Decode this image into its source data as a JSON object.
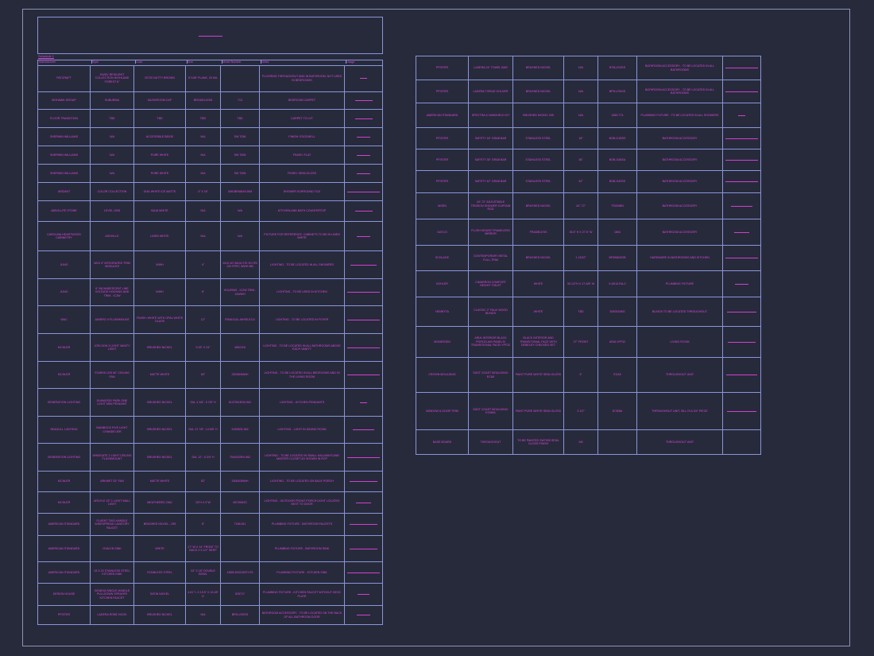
{
  "schedule_label": "Schedule 1",
  "columns": [
    "Manufacturer",
    "Style",
    "Color",
    "Size",
    "Model Number",
    "Notes",
    "Usage"
  ],
  "left_rows": [
    {
      "manufacturer": "PATCRAFT",
      "style": "DWDV RESILIENT COLLECTION HIGHLAND FOREST 6\"",
      "color": "20720 NUTTY BROWN",
      "size": "6\"X48\" PLANK, 20 MIL",
      "model": "",
      "notes": "FLOORING THROUGHOUT AND IN BATHROOM, NOT USED IN BEDROOMS",
      "usage": 0.2
    },
    {
      "manufacturer": "MOHAWK GROUP",
      "style": "SUBURBIA",
      "color": "MUSHROOM CAP",
      "size": "BROADLOOM",
      "model": "713",
      "notes": "BEDROOM CARPET",
      "usage": 0.5
    },
    {
      "manufacturer": "FLOOR TRANSITION",
      "style": "TBD",
      "color": "TBD",
      "size": "TBD",
      "model": "TBD",
      "notes": "CARPET TO LVT",
      "usage": 0.5
    },
    {
      "manufacturer": "SHERWIN WILLIAMS",
      "style": "N/A",
      "color": "ACCESSIBLE BEIGE",
      "size": "N/A",
      "model": "SW 7036",
      "notes": "FINISH: EGGSHELL",
      "usage": 0.4
    },
    {
      "manufacturer": "SHERWIN WILLIAMS",
      "style": "N/A",
      "color": "PURE WHITE",
      "size": "N/A",
      "model": "SW 7005",
      "notes": "FINISH: FLAT",
      "usage": 0.4
    },
    {
      "manufacturer": "SHERWIN WILLIAMS",
      "style": "N/A",
      "color": "PURE WHITE",
      "size": "N/A",
      "model": "SW 7005",
      "notes": "FINISH: SEMI-GLOSS",
      "usage": 0.4
    },
    {
      "manufacturer": "ARIZANT",
      "style": "COLOR COLLECTION",
      "color": "0161 WHITE ICE MATTE",
      "size": "4\" X 16\"",
      "model": "0061BRIAB4X16M",
      "notes": "SHOWER SURROUND TILE",
      "usage": 0.95
    },
    {
      "manufacturer": "ABSOLUTE STONE",
      "style": "LEVEL 1008",
      "color": "BAJA WHITE",
      "size": "N/A",
      "model": "N/A",
      "notes": "KITCHEN AND BATH COUNTERTOP",
      "usage": 0.5
    },
    {
      "manufacturer": "CAROLINA HEARTWOOD CABINETRY",
      "style": "ASHVILLE",
      "color": "LINEN WHITE",
      "size": "N/A",
      "model": "N/A",
      "notes": "PICTURE FOR REFERENCE, CABINETS TO BE IN LINEN WHITE",
      "usage": 0.4
    },
    {
      "manufacturer": "JUNO",
      "style": "WLD 4\" INTEGRATED TRIM MODULES",
      "color": "WWH",
      "size": "4\"",
      "model": "WLD 4G 06LM 27K 90 CRI 120 FRPC WWH MB",
      "notes": "LIGHTING - TO BE LOCATED IN ALL SHOWERS",
      "usage": 0.75
    },
    {
      "manufacturer": "JUNO",
      "style": "6\" INCANDESCENT LINE VOLTAGE HOUSING AND TRIM - IC2W",
      "color": "WWH",
      "size": "6\"",
      "model": "HOUSING - IC2W TRIM - 14WWH",
      "notes": "LIGHTING - TO BE USED IN KITCHEN",
      "usage": 0.95
    },
    {
      "manufacturer": "WAC",
      "style": "JANERO II FLUSHMOUNT",
      "color": "FINISH: WHITE WITH OPAL WHITE GLASS",
      "size": "12\"",
      "model": "FM4612AL-WH/ELECA",
      "notes": "LIGHTING - TO BE LOCATED IN FOYER",
      "usage": 0.95
    },
    {
      "manufacturer": "KICHLER",
      "style": "JOELSON 3 LIGHT VANITY LIGHT",
      "color": "BRUSHED NICKEL",
      "size": "9.25\" X 24\"",
      "model": "45921NI",
      "notes": "LIGHTING - TO BE LOCATED IN ALL BATHROOMS ABOVE EACH VANITY",
      "usage": 0.95
    },
    {
      "manufacturer": "KICHLER",
      "style": "STARKK LED 60\" CEILING FAN",
      "color": "MATTE WHITE",
      "size": "60\"",
      "model": "330260MWH",
      "notes": "LIGHTING - TO BE LOCATED IN ALL BEDROOMS AND IN THE LIVING ROOM",
      "usage": 0.95
    },
    {
      "manufacturer": "GENERATION LIGHTING",
      "style": "DUNWOOD PARK ONE LIGHT MINI PENDANT",
      "color": "BRUSHED NICKEL",
      "size": "DIA. 4 3/8\", 5 7/8\" H",
      "model": "6137501EN3-962",
      "notes": "LIGHTING - KITCHEN PENDANTS",
      "usage": 0.2
    },
    {
      "manufacturer": "SEAGULL LIGHTING",
      "style": "BAINBOCK FIVE LIGHT CHANDELIER",
      "color": "BRUSHED NICKEL",
      "size": "DIA. 21 7/8\", 14 5/8\" H",
      "model": "3150505-962",
      "notes": "LIGHTING - LIGHT IN DINING ROOM",
      "usage": 0.6
    },
    {
      "manufacturer": "GENERATION LIGHTING",
      "style": "WINDGATE 2 LIGHT CEILING FLUSHMOUNT",
      "color": "BRUSHED NICKEL",
      "size": "DIA. 12\", 5 3/4\" H",
      "model": "7540202EN-962",
      "notes": "LIGHTING - TO BE LOCATED IN SMALL HALLWAYS AND MASTER CLOSET AS SHOWN IN RCP",
      "usage": 0.95
    },
    {
      "manufacturer": "KICHLER",
      "style": "ARKWET 52\" FAN",
      "color": "MATTE WHITE",
      "size": "52\"",
      "model": "330620MWH",
      "notes": "LIGHTING - TO BE LOCATED ON BACK PORCH",
      "usage": 0.8
    },
    {
      "manufacturer": "KICHLER",
      "style": "ARGYLE 15\" 1 LIGHT WALL LIGHT",
      "color": "WEATHERED ZINC",
      "size": "15\"H X 9\"W",
      "model": "49749WZC",
      "notes": "LIGHTING - OUTDOOR FRONT PORCH LIGHT LOCATED NEXT TO DOOR",
      "usage": 0.45
    },
    {
      "manufacturer": "AMERICAN STANDARD",
      "style": "FLUENT TWO-HANDLE WIDESPREAD LAVATORY FAUCET",
      "color": "BRUSHED NICKEL - 295",
      "size": "8\"",
      "model": "7186.811",
      "notes": "PLUMBING FIXTURE - BATHROOM FAUCETS",
      "usage": 0.8
    },
    {
      "manufacturer": "AMERICAN STANDARD",
      "style": "OVALYN SINK",
      "color": "WHITE",
      "size": "17\" W X 14\" FRONT TO BACK X 5 1/2\" DEEP",
      "model": "",
      "notes": "PLUMBING FIXTURE - BATHROOM SINK",
      "usage": 0.8
    },
    {
      "manufacturer": "AMERICAN STANDARD",
      "style": "33 X 22 STAINLESS STEEL KITCHEN SINK",
      "color": "STAINLESS STEEL",
      "size": "33\" X 18\" DOUBLE BOWL",
      "model": "18DB.8332283T.075",
      "notes": "PLUMBING FIXTURE - KITCHEN SINK",
      "usage": 0.95
    },
    {
      "manufacturer": "DESIGN HOUSE",
      "style": "GENEVA SINGLE-HANDLE PULLDOWN SPRAYER KITCHEN FAUCET",
      "color": "SATIN NICKEL",
      "size": "4.61\" L X 15.5\" X 15.28\" D",
      "model": "525717",
      "notes": "PLUMBING FIXTURE - KITCHEN FAUCET WITHOUT DECK PLATE",
      "usage": 0.35
    },
    {
      "manufacturer": "PFISTER",
      "style": "LADERA ROBE HOOK",
      "color": "BRUSHED NICKEL",
      "size": "N/A",
      "model": "BRH-LR0GS",
      "notes": "BATHROOM ACCESSORY - TO BE LOCATED ON THE BACK OF ALL BATHROOM DOOR",
      "usage": 0.4
    }
  ],
  "right_rows": [
    {
      "manufacturer": "PFISTER",
      "style": "LADERA 24\" TOWEL BAR",
      "color": "BRUSHED NICKEL",
      "size": "N/A",
      "model": "BTB-LR2GS",
      "notes": "BATHROOM ACCESSORY - TO BE LOCATED IN ALL BATHROOMS",
      "usage": 0.95
    },
    {
      "manufacturer": "PFISTER",
      "style": "LADERA TISSUE HOLDER",
      "color": "BRUSHED NICKEL",
      "size": "N/A",
      "model": "BPH-LR0GS",
      "notes": "BATHROOM ACCESSORY - TO BE LOCATED IN ALL BATHROOMS",
      "usage": 0.95
    },
    {
      "manufacturer": "AMERICAN STANDARD",
      "style": "SPECTRA & HANDHELD KIT",
      "color": "BRUSHED NICKEL 295",
      "size": "N/A",
      "model": "1660.774",
      "notes": "PLUMBING FIXTURE - TO BE LOCATED IN ALL SHOWERS",
      "usage": 0.2
    },
    {
      "manufacturer": "PFISTER",
      "style": "SAFETY 18\" GRAB BAR",
      "color": "STAINLESS STEEL",
      "size": "18\"",
      "model": "BGB-G1BSS",
      "notes": "BATHROOM ACCESSORY",
      "usage": 0.95
    },
    {
      "manufacturer": "PFISTER",
      "style": "SAFETY 36\" GRAB BAR",
      "color": "STAINLESS STEEL",
      "size": "36\"",
      "model": "BGB-G36SA",
      "notes": "BATHROOM ACCESSORY",
      "usage": 0.95
    },
    {
      "manufacturer": "PFISTER",
      "style": "SAFETY 42\" GRAB BAR",
      "color": "STAINLESS STEEL",
      "size": "42\"",
      "model": "BGB-G42SS",
      "notes": "BATHROOM ACCESSORY",
      "usage": 0.95
    },
    {
      "manufacturer": "MOEN",
      "style": "44\"-72\" ADJUSTABLE TENSION SHOWER CURTAIN ROD",
      "color": "BRUSHED NICKEL",
      "size": "44\"-72\"",
      "model": "TS000BN",
      "notes": "BATHROOM ACCESSORY",
      "usage": 0.6
    },
    {
      "manufacturer": "GATCO",
      "style": "FLUSH MOUNT FRAMELESS MIRROR",
      "color": "FRAMELESS",
      "size": "35.5\" H X 27.5\" W",
      "model": "1804",
      "notes": "BATHROOM ACCESSORY",
      "usage": 0.45
    },
    {
      "manufacturer": "SCHLAGE",
      "style": "CONTEMPORARY METAL FULL-TRIM",
      "color": "BRUSHED NICKEL",
      "size": "1 13/32\"",
      "model": "BF5966202B",
      "notes": "HARDWARE IN BATHROOMS AND KITCHEN",
      "usage": 0.95
    },
    {
      "manufacturer": "KOHLER",
      "style": "CIMARRON COMFORT HEIGHT TOILET",
      "color": "WHITE",
      "size": "30-1/2\"H X 17-5/8\" W",
      "model": "K-6010-RA-0",
      "notes": "PLUMBING FIXTURE",
      "usage": 0.4
    },
    {
      "manufacturer": "HENRYTA",
      "style": "CLASSIC 2\" FAUX WOOD BLINDS",
      "color": "WHITE",
      "size": "TBD",
      "model": "3050510BG",
      "notes": "BLINDS TO BE LOCATED THROUGHOUT",
      "usage": 0.85
    },
    {
      "manufacturer": "MONESSEN",
      "style": "ARIA/ INTERIOR BLACK PORCELAIN PANELS/ TRANSITIONAL FACE/ VFF32",
      "color": "BLACK INTERIOR AND TRANSITIONAL FACE WITH DEBELEY CHECKED SET",
      "size": "27\" FRONT",
      "model": "ARIA VFF32",
      "notes": "LIVING ROOM",
      "usage": 0.8
    },
    {
      "manufacturer": "CROWN MOULDING",
      "style": "EAST COAST MOULDING/ ECA5",
      "color": "PAINT PURE WHITE SEMI-GLOSS",
      "size": "3\"",
      "model": "ECA5",
      "notes": "THROUGHOUT UNIT",
      "usage": 0.9
    },
    {
      "manufacturer": "WINDOW & DOOR TRIM",
      "style": "EAST COAST MOULDING/ ECM5A",
      "color": "PAINT PURE WHITE SEMI-GLOSS",
      "size": "3 1/2\"",
      "model": "ECM5A",
      "notes": "THROUGHOUT UNIT, SILL IS A 3/4\" PIECE",
      "usage": 0.85
    },
    {
      "manufacturer": "BASE BOARD",
      "style": "THROUGHOUT",
      "color": "TO BE PAINTED SW7005 SEMI-GLOSS FINISH",
      "size": "5/8",
      "model": "",
      "notes": "THROUGHOUT UNIT",
      "usage": 0
    }
  ],
  "colors": {
    "background": "#272a3b",
    "grid": "#8a95d8",
    "text": "#e048e0"
  }
}
